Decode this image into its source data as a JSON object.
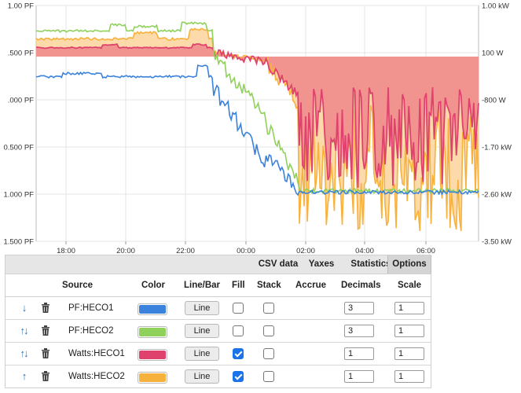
{
  "chart": {
    "left_axis_ticks": [
      "1.00 PF",
      ".500 PF",
      ".000 PF",
      "0.500 PF",
      "1.000 PF",
      "1.500 PF"
    ],
    "right_axis_ticks": [
      "1.00 kW",
      "100 W",
      "-800 W",
      "-1.70 kW",
      "-2.60 kW",
      "-3.50 kW"
    ],
    "x_axis_ticks": [
      "18:00",
      "20:00",
      "22:00",
      "00:00",
      "02:00",
      "04:00",
      "06:00"
    ],
    "colors": {
      "pf_heco1": "#3b82dc",
      "pf_heco2": "#8fd15a",
      "watts_heco1": "#e0426e",
      "watts_heco2": "#f7b13d",
      "watts_heco1_fill": "#f08c8c",
      "watts_heco2_fill": "#fbd49a"
    }
  },
  "tabs": [
    "CSV data",
    "Yaxes",
    "Statistics",
    "Options"
  ],
  "active_tab": "Options",
  "columns": {
    "source": "Source",
    "color": "Color",
    "linebar": "Line/Bar",
    "fill": "Fill",
    "stack": "Stack",
    "accrue": "Accrue",
    "decimals": "Decimals",
    "scale": "Scale"
  },
  "rows": [
    {
      "arrow": "↓",
      "source": "PF:HECO1",
      "color": "#3b82dc",
      "type": "Line",
      "fill": false,
      "stack": false,
      "decimals": "3",
      "scale": "1"
    },
    {
      "arrow": "↑↓",
      "source": "PF:HECO2",
      "color": "#8fd15a",
      "type": "Line",
      "fill": false,
      "stack": false,
      "decimals": "3",
      "scale": "1"
    },
    {
      "arrow": "↑↓",
      "source": "Watts:HECO1",
      "color": "#e0426e",
      "type": "Line",
      "fill": true,
      "stack": false,
      "decimals": "1",
      "scale": "1"
    },
    {
      "arrow": "↑",
      "source": "Watts:HECO2",
      "color": "#f7b13d",
      "type": "Line",
      "fill": true,
      "stack": false,
      "decimals": "1",
      "scale": "1"
    }
  ]
}
